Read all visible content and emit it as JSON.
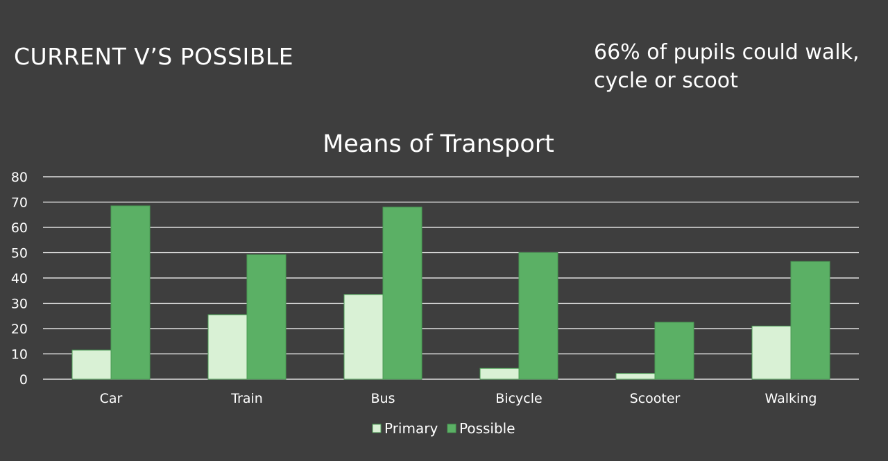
{
  "slide": {
    "title": "CURRENT V’S POSSIBLE",
    "note": "66% of pupils could walk, cycle or scoot"
  },
  "chart_data": {
    "type": "bar",
    "title": "Means of Transport",
    "xlabel": "",
    "ylabel": "",
    "categories": [
      "Car",
      "Train",
      "Bus",
      "Bicycle",
      "Scooter",
      "Walking"
    ],
    "series": [
      {
        "name": "Primary",
        "values": [
          11.5,
          25.5,
          33.5,
          4.3,
          2.3,
          21
        ],
        "color": "#d9f1d5"
      },
      {
        "name": "Possible",
        "values": [
          68.5,
          49.2,
          68,
          50,
          22.5,
          46.5
        ],
        "color": "#5bb065"
      }
    ],
    "ylim": [
      0,
      80
    ],
    "yticks": [
      0,
      10,
      20,
      30,
      40,
      50,
      60,
      70,
      80
    ],
    "grid": true,
    "legend": "bottom"
  }
}
